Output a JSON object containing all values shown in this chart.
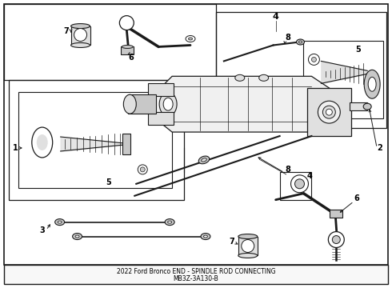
{
  "title_line1": "2022 Ford Bronco END - SPINDLE ROD CONNECTING",
  "title_line2": "MB3Z-3A130-B",
  "bg_color": "#ffffff",
  "lc": "#1a1a1a",
  "gray1": "#c8c8c8",
  "gray2": "#e0e0e0",
  "gray3": "#f0f0f0",
  "figsize": [
    4.9,
    3.6
  ],
  "dpi": 100
}
